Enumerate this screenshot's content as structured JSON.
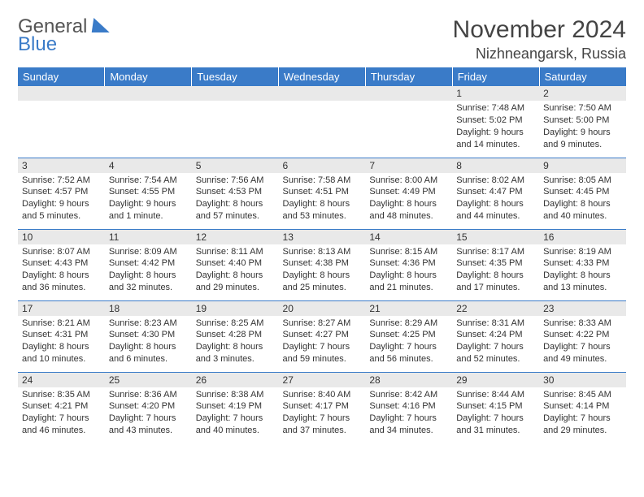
{
  "logo": {
    "line1": "General",
    "line2": "Blue"
  },
  "title": "November 2024",
  "location": "Nizhneangarsk, Russia",
  "colors": {
    "header_bg": "#3a7bc8",
    "header_text": "#ffffff",
    "daynum_bg": "#e9e9e9",
    "border": "#3a7bc8",
    "text": "#333333",
    "logo_blue": "#3a7bc8",
    "logo_gray": "#555555"
  },
  "typography": {
    "title_fontsize": 30,
    "location_fontsize": 18,
    "weekday_fontsize": 13,
    "daynum_fontsize": 12,
    "body_fontsize": 11
  },
  "weekdays": [
    "Sunday",
    "Monday",
    "Tuesday",
    "Wednesday",
    "Thursday",
    "Friday",
    "Saturday"
  ],
  "weeks": [
    [
      {
        "empty": true
      },
      {
        "empty": true
      },
      {
        "empty": true
      },
      {
        "empty": true
      },
      {
        "empty": true
      },
      {
        "num": "1",
        "sunrise": "Sunrise: 7:48 AM",
        "sunset": "Sunset: 5:02 PM",
        "daylight": "Daylight: 9 hours and 14 minutes."
      },
      {
        "num": "2",
        "sunrise": "Sunrise: 7:50 AM",
        "sunset": "Sunset: 5:00 PM",
        "daylight": "Daylight: 9 hours and 9 minutes."
      }
    ],
    [
      {
        "num": "3",
        "sunrise": "Sunrise: 7:52 AM",
        "sunset": "Sunset: 4:57 PM",
        "daylight": "Daylight: 9 hours and 5 minutes."
      },
      {
        "num": "4",
        "sunrise": "Sunrise: 7:54 AM",
        "sunset": "Sunset: 4:55 PM",
        "daylight": "Daylight: 9 hours and 1 minute."
      },
      {
        "num": "5",
        "sunrise": "Sunrise: 7:56 AM",
        "sunset": "Sunset: 4:53 PM",
        "daylight": "Daylight: 8 hours and 57 minutes."
      },
      {
        "num": "6",
        "sunrise": "Sunrise: 7:58 AM",
        "sunset": "Sunset: 4:51 PM",
        "daylight": "Daylight: 8 hours and 53 minutes."
      },
      {
        "num": "7",
        "sunrise": "Sunrise: 8:00 AM",
        "sunset": "Sunset: 4:49 PM",
        "daylight": "Daylight: 8 hours and 48 minutes."
      },
      {
        "num": "8",
        "sunrise": "Sunrise: 8:02 AM",
        "sunset": "Sunset: 4:47 PM",
        "daylight": "Daylight: 8 hours and 44 minutes."
      },
      {
        "num": "9",
        "sunrise": "Sunrise: 8:05 AM",
        "sunset": "Sunset: 4:45 PM",
        "daylight": "Daylight: 8 hours and 40 minutes."
      }
    ],
    [
      {
        "num": "10",
        "sunrise": "Sunrise: 8:07 AM",
        "sunset": "Sunset: 4:43 PM",
        "daylight": "Daylight: 8 hours and 36 minutes."
      },
      {
        "num": "11",
        "sunrise": "Sunrise: 8:09 AM",
        "sunset": "Sunset: 4:42 PM",
        "daylight": "Daylight: 8 hours and 32 minutes."
      },
      {
        "num": "12",
        "sunrise": "Sunrise: 8:11 AM",
        "sunset": "Sunset: 4:40 PM",
        "daylight": "Daylight: 8 hours and 29 minutes."
      },
      {
        "num": "13",
        "sunrise": "Sunrise: 8:13 AM",
        "sunset": "Sunset: 4:38 PM",
        "daylight": "Daylight: 8 hours and 25 minutes."
      },
      {
        "num": "14",
        "sunrise": "Sunrise: 8:15 AM",
        "sunset": "Sunset: 4:36 PM",
        "daylight": "Daylight: 8 hours and 21 minutes."
      },
      {
        "num": "15",
        "sunrise": "Sunrise: 8:17 AM",
        "sunset": "Sunset: 4:35 PM",
        "daylight": "Daylight: 8 hours and 17 minutes."
      },
      {
        "num": "16",
        "sunrise": "Sunrise: 8:19 AM",
        "sunset": "Sunset: 4:33 PM",
        "daylight": "Daylight: 8 hours and 13 minutes."
      }
    ],
    [
      {
        "num": "17",
        "sunrise": "Sunrise: 8:21 AM",
        "sunset": "Sunset: 4:31 PM",
        "daylight": "Daylight: 8 hours and 10 minutes."
      },
      {
        "num": "18",
        "sunrise": "Sunrise: 8:23 AM",
        "sunset": "Sunset: 4:30 PM",
        "daylight": "Daylight: 8 hours and 6 minutes."
      },
      {
        "num": "19",
        "sunrise": "Sunrise: 8:25 AM",
        "sunset": "Sunset: 4:28 PM",
        "daylight": "Daylight: 8 hours and 3 minutes."
      },
      {
        "num": "20",
        "sunrise": "Sunrise: 8:27 AM",
        "sunset": "Sunset: 4:27 PM",
        "daylight": "Daylight: 7 hours and 59 minutes."
      },
      {
        "num": "21",
        "sunrise": "Sunrise: 8:29 AM",
        "sunset": "Sunset: 4:25 PM",
        "daylight": "Daylight: 7 hours and 56 minutes."
      },
      {
        "num": "22",
        "sunrise": "Sunrise: 8:31 AM",
        "sunset": "Sunset: 4:24 PM",
        "daylight": "Daylight: 7 hours and 52 minutes."
      },
      {
        "num": "23",
        "sunrise": "Sunrise: 8:33 AM",
        "sunset": "Sunset: 4:22 PM",
        "daylight": "Daylight: 7 hours and 49 minutes."
      }
    ],
    [
      {
        "num": "24",
        "sunrise": "Sunrise: 8:35 AM",
        "sunset": "Sunset: 4:21 PM",
        "daylight": "Daylight: 7 hours and 46 minutes."
      },
      {
        "num": "25",
        "sunrise": "Sunrise: 8:36 AM",
        "sunset": "Sunset: 4:20 PM",
        "daylight": "Daylight: 7 hours and 43 minutes."
      },
      {
        "num": "26",
        "sunrise": "Sunrise: 8:38 AM",
        "sunset": "Sunset: 4:19 PM",
        "daylight": "Daylight: 7 hours and 40 minutes."
      },
      {
        "num": "27",
        "sunrise": "Sunrise: 8:40 AM",
        "sunset": "Sunset: 4:17 PM",
        "daylight": "Daylight: 7 hours and 37 minutes."
      },
      {
        "num": "28",
        "sunrise": "Sunrise: 8:42 AM",
        "sunset": "Sunset: 4:16 PM",
        "daylight": "Daylight: 7 hours and 34 minutes."
      },
      {
        "num": "29",
        "sunrise": "Sunrise: 8:44 AM",
        "sunset": "Sunset: 4:15 PM",
        "daylight": "Daylight: 7 hours and 31 minutes."
      },
      {
        "num": "30",
        "sunrise": "Sunrise: 8:45 AM",
        "sunset": "Sunset: 4:14 PM",
        "daylight": "Daylight: 7 hours and 29 minutes."
      }
    ]
  ]
}
